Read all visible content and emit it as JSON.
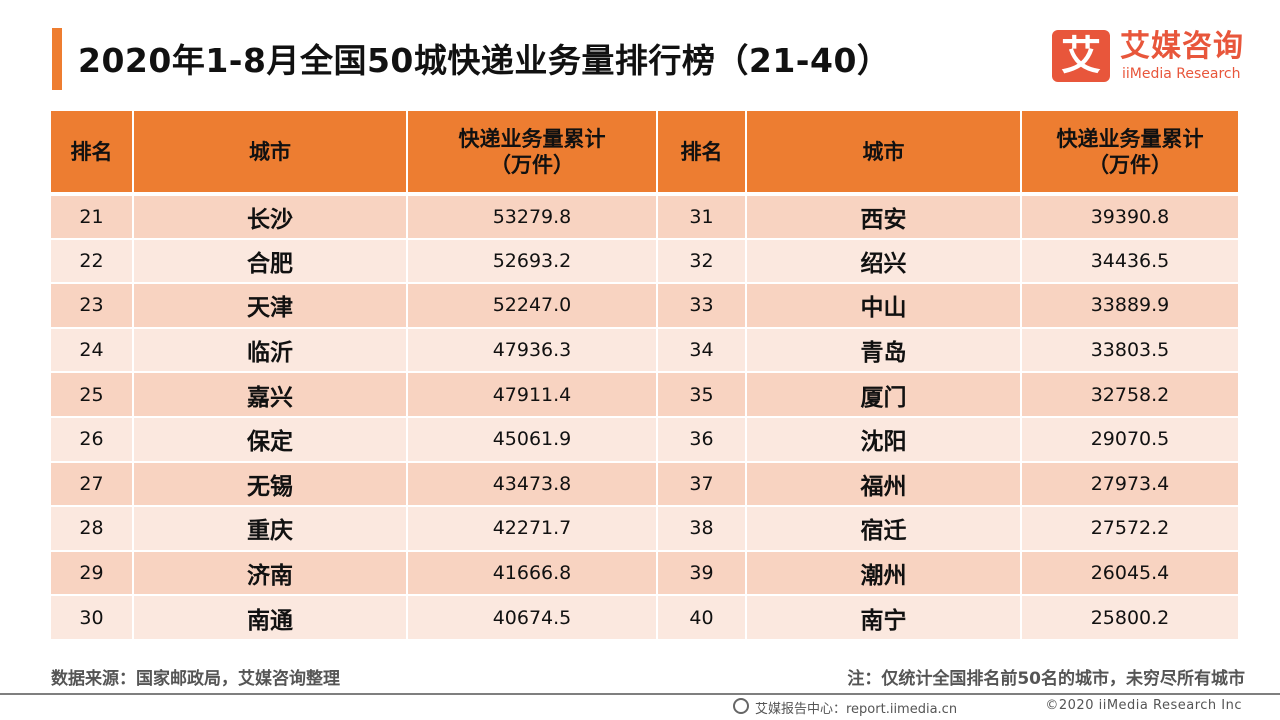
{
  "title": "2020年1-8月全国50城快递业务量排行榜（21-40）",
  "logo": {
    "mark": "艾",
    "cn": "艾媒咨询",
    "en": "iiMedia Research"
  },
  "colors": {
    "accent": "#ed7d31",
    "row_dark": "#f8d3c1",
    "row_light": "#fbe8df",
    "brand": "#e8563b"
  },
  "chart_data": {
    "type": "table",
    "headers": [
      "排名",
      "城市",
      "快递业务量累计（万件）",
      "排名",
      "城市",
      "快递业务量累计（万件）"
    ],
    "header_value_line1": "快递业务量累计",
    "header_value_line2": "（万件）",
    "rows": [
      {
        "rank": "21",
        "city": "长沙",
        "value": "53279.8",
        "rank2": "31",
        "city2": "西安",
        "value2": "39390.8"
      },
      {
        "rank": "22",
        "city": "合肥",
        "value": "52693.2",
        "rank2": "32",
        "city2": "绍兴",
        "value2": "34436.5"
      },
      {
        "rank": "23",
        "city": "天津",
        "value": "52247.0",
        "rank2": "33",
        "city2": "中山",
        "value2": "33889.9"
      },
      {
        "rank": "24",
        "city": "临沂",
        "value": "47936.3",
        "rank2": "34",
        "city2": "青岛",
        "value2": "33803.5"
      },
      {
        "rank": "25",
        "city": "嘉兴",
        "value": "47911.4",
        "rank2": "35",
        "city2": "厦门",
        "value2": "32758.2"
      },
      {
        "rank": "26",
        "city": "保定",
        "value": "45061.9",
        "rank2": "36",
        "city2": "沈阳",
        "value2": "29070.5"
      },
      {
        "rank": "27",
        "city": "无锡",
        "value": "43473.8",
        "rank2": "37",
        "city2": "福州",
        "value2": "27973.4"
      },
      {
        "rank": "28",
        "city": "重庆",
        "value": "42271.7",
        "rank2": "38",
        "city2": "宿迁",
        "value2": "27572.2"
      },
      {
        "rank": "29",
        "city": "济南",
        "value": "41666.8",
        "rank2": "39",
        "city2": "潮州",
        "value2": "26045.4"
      },
      {
        "rank": "30",
        "city": "南通",
        "value": "40674.5",
        "rank2": "40",
        "city2": "南宁",
        "value2": "25800.2"
      }
    ]
  },
  "source": "数据来源：国家邮政局，艾媒咨询整理",
  "note": "注：仅统计全国排名前50名的城市，未穷尽所有城市",
  "footer": {
    "site": "艾媒报告中心：report.iimedia.cn",
    "copyright": "©2020  iiMedia Research  Inc"
  }
}
